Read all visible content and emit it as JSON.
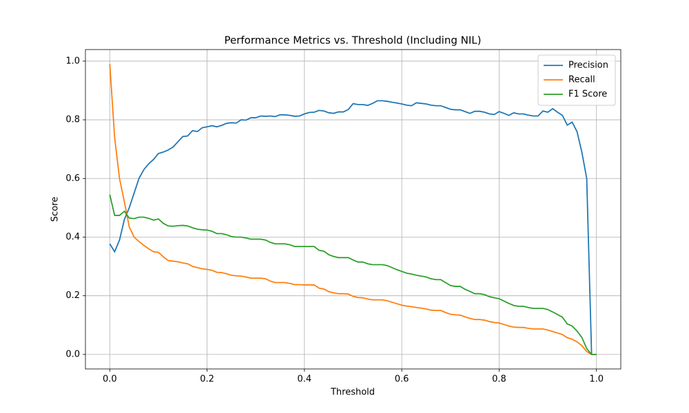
{
  "chart_data": {
    "type": "line",
    "title": "Performance Metrics vs. Threshold (Including NIL)",
    "x_label": "Threshold",
    "y_label": "Score",
    "x": [
      0,
      0.01,
      0.02,
      0.03,
      0.04,
      0.05,
      0.06,
      0.07,
      0.08,
      0.09,
      0.1,
      0.11,
      0.12,
      0.13,
      0.14,
      0.15,
      0.16,
      0.17,
      0.18,
      0.19,
      0.2,
      0.21,
      0.22,
      0.23,
      0.24,
      0.25,
      0.26,
      0.27,
      0.28,
      0.29,
      0.3,
      0.31,
      0.32,
      0.33,
      0.34,
      0.35,
      0.36,
      0.37,
      0.38,
      0.39,
      0.4,
      0.41,
      0.42,
      0.43,
      0.44,
      0.45,
      0.46,
      0.47,
      0.48,
      0.49,
      0.5,
      0.51,
      0.52,
      0.53,
      0.54,
      0.55,
      0.56,
      0.57,
      0.58,
      0.59,
      0.6,
      0.61,
      0.62,
      0.63,
      0.64,
      0.65,
      0.66,
      0.67,
      0.68,
      0.69,
      0.7,
      0.71,
      0.72,
      0.73,
      0.74,
      0.75,
      0.76,
      0.77,
      0.78,
      0.79,
      0.8,
      0.81,
      0.82,
      0.83,
      0.84,
      0.85,
      0.86,
      0.87,
      0.88,
      0.89,
      0.9,
      0.91,
      0.92,
      0.93,
      0.94,
      0.95,
      0.96,
      0.97,
      0.98,
      0.99,
      1
    ],
    "series": [
      {
        "name": "Precision",
        "color": "#1f77b4",
        "values": [
          0.377,
          0.35,
          0.39,
          0.46,
          0.5,
          0.55,
          0.6,
          0.63,
          0.65,
          0.665,
          0.685,
          0.69,
          0.697,
          0.707,
          0.725,
          0.743,
          0.745,
          0.763,
          0.76,
          0.773,
          0.776,
          0.78,
          0.776,
          0.781,
          0.788,
          0.79,
          0.789,
          0.8,
          0.799,
          0.807,
          0.807,
          0.813,
          0.812,
          0.813,
          0.811,
          0.817,
          0.817,
          0.815,
          0.812,
          0.813,
          0.82,
          0.825,
          0.826,
          0.832,
          0.83,
          0.824,
          0.822,
          0.827,
          0.827,
          0.835,
          0.855,
          0.852,
          0.852,
          0.849,
          0.856,
          0.865,
          0.865,
          0.863,
          0.86,
          0.857,
          0.854,
          0.85,
          0.848,
          0.858,
          0.856,
          0.854,
          0.85,
          0.848,
          0.848,
          0.842,
          0.836,
          0.834,
          0.834,
          0.828,
          0.822,
          0.829,
          0.829,
          0.826,
          0.82,
          0.818,
          0.828,
          0.822,
          0.815,
          0.824,
          0.82,
          0.82,
          0.816,
          0.813,
          0.813,
          0.83,
          0.826,
          0.838,
          0.826,
          0.815,
          0.782,
          0.792,
          0.76,
          0.69,
          0.6,
          0,
          0
        ]
      },
      {
        "name": "Recall",
        "color": "#ff7f0e",
        "values": [
          0.99,
          0.74,
          0.6,
          0.52,
          0.435,
          0.4,
          0.385,
          0.372,
          0.36,
          0.35,
          0.348,
          0.333,
          0.32,
          0.318,
          0.316,
          0.312,
          0.309,
          0.3,
          0.296,
          0.292,
          0.29,
          0.287,
          0.28,
          0.279,
          0.275,
          0.27,
          0.268,
          0.267,
          0.264,
          0.26,
          0.26,
          0.26,
          0.258,
          0.25,
          0.245,
          0.245,
          0.245,
          0.242,
          0.238,
          0.238,
          0.237,
          0.237,
          0.237,
          0.226,
          0.223,
          0.214,
          0.21,
          0.207,
          0.207,
          0.206,
          0.198,
          0.194,
          0.193,
          0.189,
          0.186,
          0.186,
          0.186,
          0.183,
          0.178,
          0.173,
          0.168,
          0.165,
          0.163,
          0.16,
          0.158,
          0.155,
          0.151,
          0.15,
          0.15,
          0.143,
          0.137,
          0.135,
          0.134,
          0.128,
          0.123,
          0.119,
          0.119,
          0.117,
          0.112,
          0.109,
          0.107,
          0.102,
          0.097,
          0.093,
          0.092,
          0.092,
          0.089,
          0.087,
          0.087,
          0.087,
          0.083,
          0.078,
          0.073,
          0.068,
          0.057,
          0.052,
          0.043,
          0.03,
          0.01,
          0,
          0
        ]
      },
      {
        "name": "F1 Score",
        "color": "#2ca02c",
        "values": [
          0.545,
          0.474,
          0.474,
          0.488,
          0.465,
          0.463,
          0.468,
          0.468,
          0.464,
          0.458,
          0.462,
          0.447,
          0.438,
          0.437,
          0.439,
          0.44,
          0.438,
          0.432,
          0.427,
          0.425,
          0.424,
          0.42,
          0.412,
          0.412,
          0.408,
          0.402,
          0.4,
          0.4,
          0.397,
          0.393,
          0.393,
          0.393,
          0.39,
          0.382,
          0.377,
          0.377,
          0.377,
          0.374,
          0.368,
          0.368,
          0.368,
          0.368,
          0.368,
          0.355,
          0.352,
          0.34,
          0.334,
          0.33,
          0.33,
          0.33,
          0.322,
          0.315,
          0.315,
          0.309,
          0.306,
          0.306,
          0.306,
          0.303,
          0.296,
          0.289,
          0.283,
          0.277,
          0.274,
          0.27,
          0.267,
          0.264,
          0.258,
          0.255,
          0.255,
          0.245,
          0.235,
          0.232,
          0.232,
          0.222,
          0.215,
          0.207,
          0.207,
          0.204,
          0.197,
          0.193,
          0.19,
          0.182,
          0.174,
          0.167,
          0.164,
          0.164,
          0.16,
          0.157,
          0.157,
          0.157,
          0.153,
          0.145,
          0.136,
          0.127,
          0.104,
          0.097,
          0.08,
          0.058,
          0.02,
          0,
          0
        ]
      }
    ],
    "xlim": [
      -0.05,
      1.05
    ],
    "ylim": [
      -0.0495,
      1.0395
    ],
    "xticks": [
      {
        "value": 0,
        "label": "0.0"
      },
      0.2,
      0.4,
      0.6,
      0.8,
      {
        "value": 1,
        "label": "1.0"
      }
    ],
    "yticks": [
      {
        "value": 0,
        "label": "0.0"
      },
      0.2,
      0.4,
      0.6,
      0.8,
      {
        "value": 1,
        "label": "1.0"
      }
    ],
    "grid": true,
    "legend": "upper right"
  }
}
